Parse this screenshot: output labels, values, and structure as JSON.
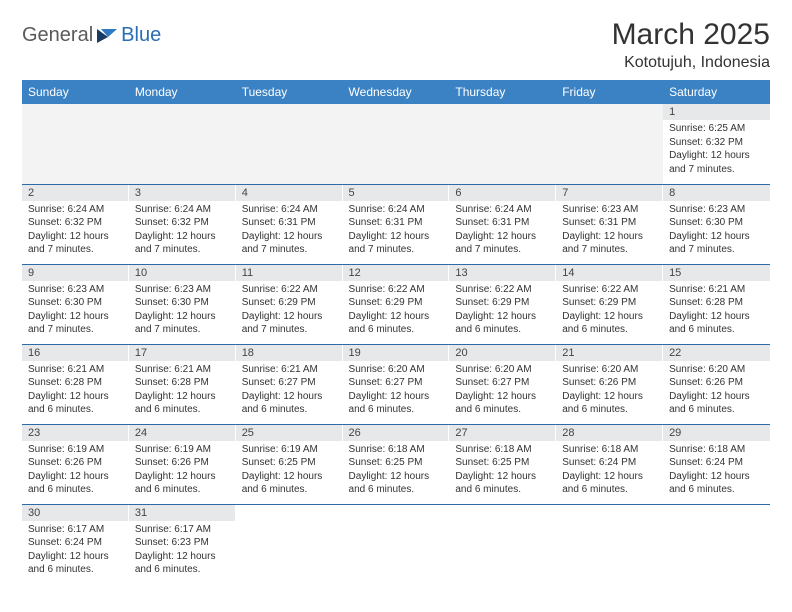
{
  "brand": {
    "general": "General",
    "blue": "Blue"
  },
  "title": "March 2025",
  "location": "Kototujuh, Indonesia",
  "colors": {
    "header_bg": "#3b82c4",
    "header_text": "#ffffff",
    "daynum_bg": "#e7e8ea",
    "row_border": "#2f6aa8",
    "brand_blue": "#2a6db5",
    "brand_gray": "#5a5a5a",
    "page_bg": "#ffffff"
  },
  "typography": {
    "title_fontsize": 30,
    "location_fontsize": 16,
    "weekday_fontsize": 12,
    "daynum_fontsize": 11,
    "body_fontsize": 10,
    "font_family": "Arial"
  },
  "weekdays": [
    "Sunday",
    "Monday",
    "Tuesday",
    "Wednesday",
    "Thursday",
    "Friday",
    "Saturday"
  ],
  "grid": [
    [
      null,
      null,
      null,
      null,
      null,
      null,
      {
        "n": "1",
        "sr": "Sunrise: 6:25 AM",
        "ss": "Sunset: 6:32 PM",
        "dl": "Daylight: 12 hours and 7 minutes."
      }
    ],
    [
      {
        "n": "2",
        "sr": "Sunrise: 6:24 AM",
        "ss": "Sunset: 6:32 PM",
        "dl": "Daylight: 12 hours and 7 minutes."
      },
      {
        "n": "3",
        "sr": "Sunrise: 6:24 AM",
        "ss": "Sunset: 6:32 PM",
        "dl": "Daylight: 12 hours and 7 minutes."
      },
      {
        "n": "4",
        "sr": "Sunrise: 6:24 AM",
        "ss": "Sunset: 6:31 PM",
        "dl": "Daylight: 12 hours and 7 minutes."
      },
      {
        "n": "5",
        "sr": "Sunrise: 6:24 AM",
        "ss": "Sunset: 6:31 PM",
        "dl": "Daylight: 12 hours and 7 minutes."
      },
      {
        "n": "6",
        "sr": "Sunrise: 6:24 AM",
        "ss": "Sunset: 6:31 PM",
        "dl": "Daylight: 12 hours and 7 minutes."
      },
      {
        "n": "7",
        "sr": "Sunrise: 6:23 AM",
        "ss": "Sunset: 6:31 PM",
        "dl": "Daylight: 12 hours and 7 minutes."
      },
      {
        "n": "8",
        "sr": "Sunrise: 6:23 AM",
        "ss": "Sunset: 6:30 PM",
        "dl": "Daylight: 12 hours and 7 minutes."
      }
    ],
    [
      {
        "n": "9",
        "sr": "Sunrise: 6:23 AM",
        "ss": "Sunset: 6:30 PM",
        "dl": "Daylight: 12 hours and 7 minutes."
      },
      {
        "n": "10",
        "sr": "Sunrise: 6:23 AM",
        "ss": "Sunset: 6:30 PM",
        "dl": "Daylight: 12 hours and 7 minutes."
      },
      {
        "n": "11",
        "sr": "Sunrise: 6:22 AM",
        "ss": "Sunset: 6:29 PM",
        "dl": "Daylight: 12 hours and 7 minutes."
      },
      {
        "n": "12",
        "sr": "Sunrise: 6:22 AM",
        "ss": "Sunset: 6:29 PM",
        "dl": "Daylight: 12 hours and 6 minutes."
      },
      {
        "n": "13",
        "sr": "Sunrise: 6:22 AM",
        "ss": "Sunset: 6:29 PM",
        "dl": "Daylight: 12 hours and 6 minutes."
      },
      {
        "n": "14",
        "sr": "Sunrise: 6:22 AM",
        "ss": "Sunset: 6:29 PM",
        "dl": "Daylight: 12 hours and 6 minutes."
      },
      {
        "n": "15",
        "sr": "Sunrise: 6:21 AM",
        "ss": "Sunset: 6:28 PM",
        "dl": "Daylight: 12 hours and 6 minutes."
      }
    ],
    [
      {
        "n": "16",
        "sr": "Sunrise: 6:21 AM",
        "ss": "Sunset: 6:28 PM",
        "dl": "Daylight: 12 hours and 6 minutes."
      },
      {
        "n": "17",
        "sr": "Sunrise: 6:21 AM",
        "ss": "Sunset: 6:28 PM",
        "dl": "Daylight: 12 hours and 6 minutes."
      },
      {
        "n": "18",
        "sr": "Sunrise: 6:21 AM",
        "ss": "Sunset: 6:27 PM",
        "dl": "Daylight: 12 hours and 6 minutes."
      },
      {
        "n": "19",
        "sr": "Sunrise: 6:20 AM",
        "ss": "Sunset: 6:27 PM",
        "dl": "Daylight: 12 hours and 6 minutes."
      },
      {
        "n": "20",
        "sr": "Sunrise: 6:20 AM",
        "ss": "Sunset: 6:27 PM",
        "dl": "Daylight: 12 hours and 6 minutes."
      },
      {
        "n": "21",
        "sr": "Sunrise: 6:20 AM",
        "ss": "Sunset: 6:26 PM",
        "dl": "Daylight: 12 hours and 6 minutes."
      },
      {
        "n": "22",
        "sr": "Sunrise: 6:20 AM",
        "ss": "Sunset: 6:26 PM",
        "dl": "Daylight: 12 hours and 6 minutes."
      }
    ],
    [
      {
        "n": "23",
        "sr": "Sunrise: 6:19 AM",
        "ss": "Sunset: 6:26 PM",
        "dl": "Daylight: 12 hours and 6 minutes."
      },
      {
        "n": "24",
        "sr": "Sunrise: 6:19 AM",
        "ss": "Sunset: 6:26 PM",
        "dl": "Daylight: 12 hours and 6 minutes."
      },
      {
        "n": "25",
        "sr": "Sunrise: 6:19 AM",
        "ss": "Sunset: 6:25 PM",
        "dl": "Daylight: 12 hours and 6 minutes."
      },
      {
        "n": "26",
        "sr": "Sunrise: 6:18 AM",
        "ss": "Sunset: 6:25 PM",
        "dl": "Daylight: 12 hours and 6 minutes."
      },
      {
        "n": "27",
        "sr": "Sunrise: 6:18 AM",
        "ss": "Sunset: 6:25 PM",
        "dl": "Daylight: 12 hours and 6 minutes."
      },
      {
        "n": "28",
        "sr": "Sunrise: 6:18 AM",
        "ss": "Sunset: 6:24 PM",
        "dl": "Daylight: 12 hours and 6 minutes."
      },
      {
        "n": "29",
        "sr": "Sunrise: 6:18 AM",
        "ss": "Sunset: 6:24 PM",
        "dl": "Daylight: 12 hours and 6 minutes."
      }
    ],
    [
      {
        "n": "30",
        "sr": "Sunrise: 6:17 AM",
        "ss": "Sunset: 6:24 PM",
        "dl": "Daylight: 12 hours and 6 minutes."
      },
      {
        "n": "31",
        "sr": "Sunrise: 6:17 AM",
        "ss": "Sunset: 6:23 PM",
        "dl": "Daylight: 12 hours and 6 minutes."
      },
      null,
      null,
      null,
      null,
      null
    ]
  ]
}
